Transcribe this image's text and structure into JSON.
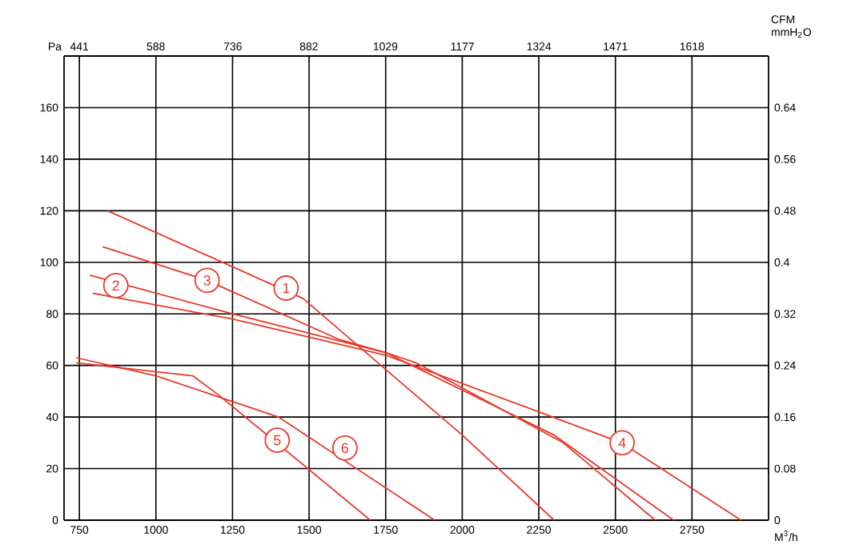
{
  "chart_data": {
    "type": "line",
    "xlabel": "M$^{3}$/h",
    "ylabel": "Pa",
    "x2label": "CFM",
    "y2label": "mmH$_{2}$O",
    "xlim": [
      700,
      3000
    ],
    "xticks": [
      750,
      1000,
      1250,
      1500,
      1750,
      2000,
      2250,
      2500,
      2750
    ],
    "ylim": [
      0,
      180
    ],
    "yticks": [
      0,
      20,
      40,
      60,
      80,
      100,
      120,
      140,
      160
    ],
    "x2lim": [
      411.6,
      1765.2
    ],
    "x2ticks": [
      441,
      588,
      736,
      882,
      1029,
      1177,
      1324,
      1471,
      1618
    ],
    "y2lim": [
      0,
      0.72
    ],
    "y2ticks": [
      0,
      0.08,
      0.16,
      0.24,
      0.32,
      0.4,
      0.48,
      0.56,
      0.64
    ],
    "grid": true,
    "series": [
      {
        "color": "#e8382a",
        "x": [
          842,
          1480,
          2000,
          2300
        ],
        "values": [
          120,
          86,
          33,
          0
        ]
      },
      {
        "color": "#e8382a",
        "x": [
          784,
          1250,
          1750,
          1850,
          2330,
          2630
        ],
        "values": [
          95,
          80,
          65,
          61,
          30,
          0
        ]
      },
      {
        "color": "#e8382a",
        "x": [
          826,
          1167,
          1600,
          1750,
          2300,
          2690
        ],
        "values": [
          106,
          93,
          70,
          65,
          33,
          0
        ]
      },
      {
        "color": "#e8382a",
        "x": [
          793,
          1250,
          1750,
          2250,
          2520,
          2910
        ],
        "values": [
          88,
          78,
          64,
          42,
          30,
          0
        ]
      },
      {
        "color": "#e8382a",
        "x": [
          740,
          1120,
          1200,
          1700
        ],
        "values": [
          61,
          56,
          49,
          0
        ]
      },
      {
        "color": "#e8382a",
        "x": [
          740,
          1000,
          1400,
          1910
        ],
        "values": [
          63,
          56,
          40,
          0
        ]
      }
    ],
    "annotations": [
      {
        "text": "1",
        "x": 1425,
        "y": 90
      },
      {
        "text": "2",
        "x": 869,
        "y": 91
      },
      {
        "text": "3",
        "x": 1167,
        "y": 93
      },
      {
        "text": "4",
        "x": 2522,
        "y": 30
      },
      {
        "text": "5",
        "x": 1396,
        "y": 31
      },
      {
        "text": "6",
        "x": 1617,
        "y": 28
      }
    ]
  }
}
